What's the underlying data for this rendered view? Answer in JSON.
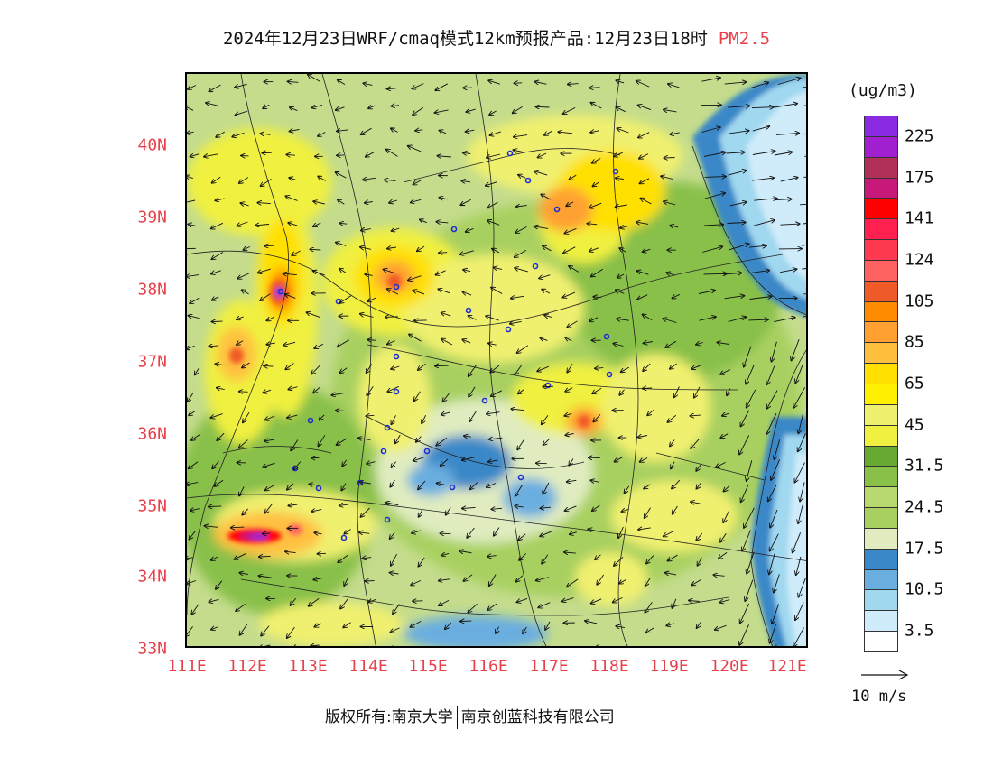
{
  "title": {
    "main": "2024年12月23日WRF/cmaq模式12km预报产品:12月23日18时",
    "pollutant": "PM2.5"
  },
  "map": {
    "lat_labels": [
      "40N",
      "39N",
      "38N",
      "37N",
      "36N",
      "35N",
      "34N",
      "33N"
    ],
    "lon_labels": [
      "111E",
      "112E",
      "113E",
      "114E",
      "115E",
      "116E",
      "117E",
      "118E",
      "119E",
      "120E",
      "121E"
    ],
    "background_color": "#cfe0a0",
    "sea_color": "#c6e4f5"
  },
  "legend": {
    "unit": "(ug/m3)",
    "tick_labels": [
      "225",
      "175",
      "141",
      "124",
      "105",
      "85",
      "65",
      "45",
      "31.5",
      "24.5",
      "17.5",
      "10.5",
      "3.5"
    ],
    "colors": [
      "#8a2be2",
      "#a020d0",
      "#b0305a",
      "#c8187a",
      "#ff0000",
      "#ff2050",
      "#ff3a50",
      "#ff6060",
      "#f05a28",
      "#ff8c00",
      "#ffa030",
      "#ffc040",
      "#ffe000",
      "#fff000",
      "#f0f070",
      "#f0f040",
      "#66aa33",
      "#88c048",
      "#b8d870",
      "#a8d060",
      "#e0ecc0",
      "#3a88c8",
      "#6aaee0",
      "#a0d8f0",
      "#d0ecfa",
      "#ffffff"
    ]
  },
  "wind_reference": {
    "label": "10 m/s"
  },
  "copyright": {
    "left": "版权所有:南京大学",
    "right": "南京创蓝科技有限公司"
  }
}
